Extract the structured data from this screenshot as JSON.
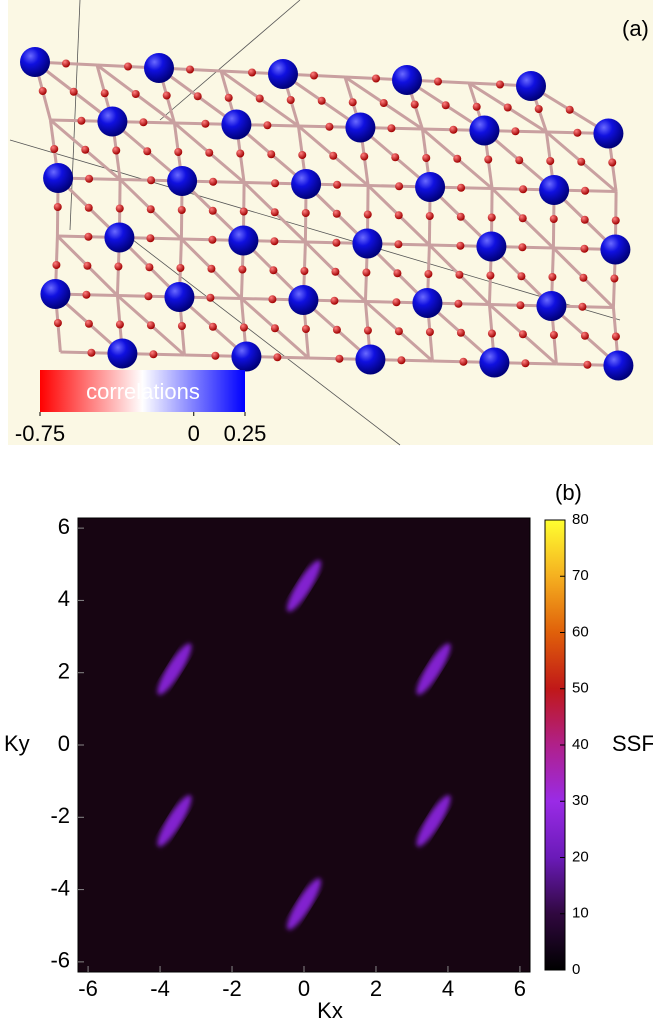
{
  "chart_data": [
    {
      "type": "network",
      "panel_label": "(a)",
      "colorbar_label": "correlations",
      "clim": [
        -0.75,
        0.25
      ],
      "cticks": [
        -0.75,
        0,
        0.25
      ],
      "cmap": [
        "#ff0000",
        "#ffffff",
        "#0000ff"
      ]
    },
    {
      "type": "heatmap",
      "panel_label": "(b)",
      "xlabel": "Kx",
      "ylabel": "Ky",
      "colorbar_label": "SSF",
      "xlim": [
        -6.28,
        6.28
      ],
      "ylim": [
        -6.28,
        6.28
      ],
      "xticks": [
        -6,
        -4,
        -2,
        0,
        2,
        4,
        6
      ],
      "yticks": [
        -6,
        -4,
        -2,
        0,
        2,
        4,
        6
      ],
      "clim": [
        0,
        80
      ],
      "cticks": [
        0,
        10,
        20,
        30,
        40,
        50,
        60,
        70,
        80
      ],
      "cmap": [
        "#000000",
        "#30083f",
        "#6a1ab8",
        "#9a2be6",
        "#b0208a",
        "#c01818",
        "#e0600a",
        "#f5b020",
        "#ffff30"
      ],
      "x": [
        0,
        -3.6,
        3.6,
        -3.6,
        3.6,
        0
      ],
      "y": [
        4.4,
        2.1,
        2.1,
        -2.1,
        -2.1,
        -4.4
      ],
      "values": [
        25,
        25,
        25,
        25,
        25,
        25
      ]
    }
  ]
}
